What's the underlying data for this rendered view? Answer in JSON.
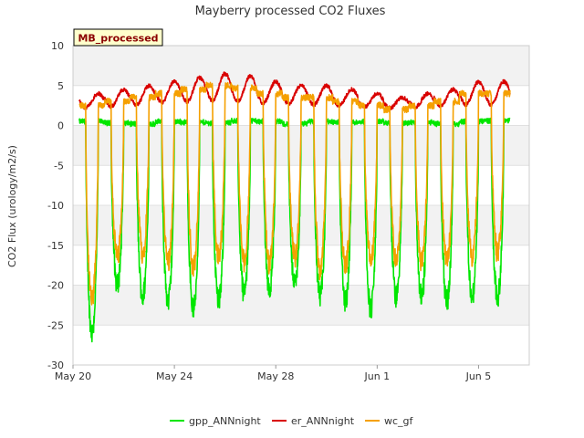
{
  "chart_data": {
    "type": "line",
    "title": "Mayberry processed CO2 Fluxes",
    "badge": "MB_processed",
    "xlabel": "",
    "ylabel": "CO2 Flux (urology/m2/s)",
    "ylim": [
      -30,
      10
    ],
    "yticks": [
      10,
      5,
      0,
      -5,
      -10,
      -15,
      -20,
      -25,
      -30
    ],
    "xlim_days": [
      0,
      18
    ],
    "xticks": [
      {
        "day": 0,
        "label": "May 20"
      },
      {
        "day": 4,
        "label": "May 24"
      },
      {
        "day": 8,
        "label": "May 28"
      },
      {
        "day": 12,
        "label": "Jun 1"
      },
      {
        "day": 16,
        "label": "Jun 5"
      }
    ],
    "grid": true,
    "legend_position": "bottom",
    "daily": {
      "start_day": 0.25,
      "n_days": 17,
      "night_gpp": [
        0.5,
        0.3,
        0.2,
        0.5,
        0.4,
        0.3,
        0.6,
        0.5,
        0.2,
        0.5,
        0.4,
        0.5,
        0.3,
        0.4,
        0.2,
        0.5,
        0.6
      ],
      "day_gpp_min": [
        -26,
        -20,
        -21.5,
        -22,
        -23,
        -22,
        -21,
        -20.5,
        -20,
        -21.5,
        -22,
        -23,
        -21.5,
        -21.5,
        -22,
        -21.5,
        -21.5
      ],
      "night_er": [
        4.0,
        4.5,
        5.0,
        5.5,
        6.0,
        6.5,
        6.2,
        5.5,
        5.0,
        5.0,
        4.5,
        4.0,
        3.5,
        4.0,
        4.5,
        5.5,
        5.5
      ],
      "day_er_min": [
        2.2,
        2.4,
        2.6,
        2.9,
        3.0,
        3.1,
        3.0,
        2.8,
        2.7,
        2.6,
        2.5,
        2.3,
        2.2,
        2.3,
        2.5,
        2.6,
        2.6
      ],
      "day_wc_min": [
        -22,
        -16.5,
        -16,
        -17,
        -18,
        -16.5,
        -17,
        -17.5,
        -16.5,
        -18,
        -17.5,
        -17,
        -17,
        -17,
        -17,
        -16.5,
        -16
      ]
    },
    "series": [
      {
        "name": "gpp_ANNnight",
        "color": "#00e600"
      },
      {
        "name": "er_ANNnight",
        "color": "#d90000"
      },
      {
        "name": "wc_gf",
        "color": "#f5a000"
      }
    ]
  },
  "colors": {
    "band": "#f2f2f2",
    "grid": "#e0e0e0",
    "axis": "#cccccc",
    "badge_fill": "#ffffcc"
  }
}
